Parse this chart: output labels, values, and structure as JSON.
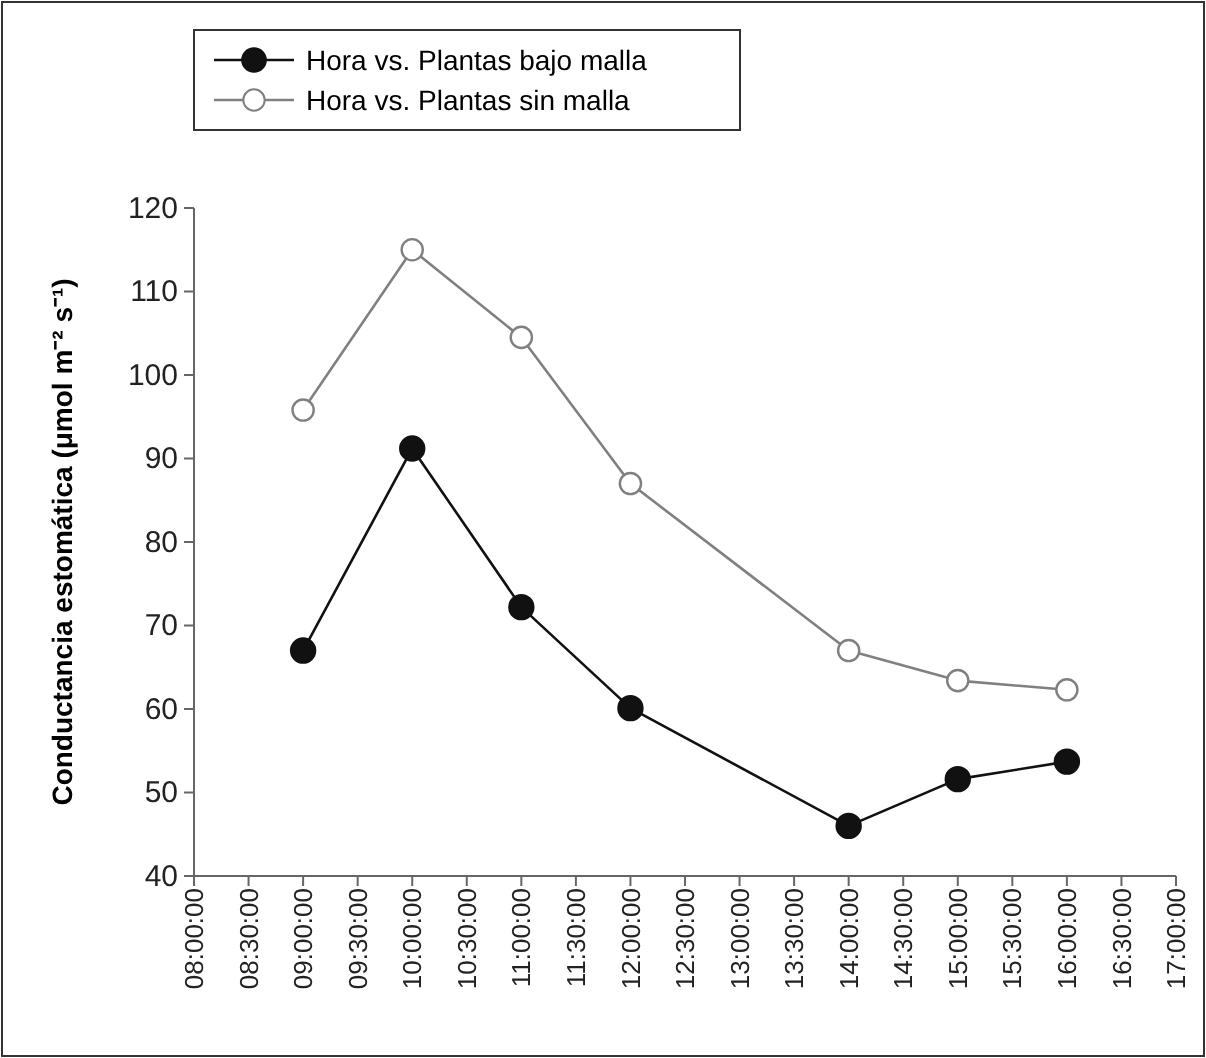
{
  "chart_data": {
    "type": "line",
    "ylabel": "Conductancia estomática (μmol m⁻² s⁻¹)",
    "xlim": [
      8,
      17
    ],
    "xticks": [
      {
        "value": 8,
        "label": "08:00:00"
      },
      {
        "value": 8.5,
        "label": "08:30:00"
      },
      {
        "value": 9,
        "label": "09:00:00"
      },
      {
        "value": 9.5,
        "label": "09:30:00"
      },
      {
        "value": 10,
        "label": "10:00:00"
      },
      {
        "value": 10.5,
        "label": "10:30:00"
      },
      {
        "value": 11,
        "label": "11:00:00"
      },
      {
        "value": 11.5,
        "label": "11:30:00"
      },
      {
        "value": 12,
        "label": "12:00:00"
      },
      {
        "value": 12.5,
        "label": "12:30:00"
      },
      {
        "value": 13,
        "label": "13:00:00"
      },
      {
        "value": 13.5,
        "label": "13:30:00"
      },
      {
        "value": 14,
        "label": "14:00:00"
      },
      {
        "value": 14.5,
        "label": "14:30:00"
      },
      {
        "value": 15,
        "label": "15:00:00"
      },
      {
        "value": 15.5,
        "label": "15:30:00"
      },
      {
        "value": 16,
        "label": "16:00:00"
      },
      {
        "value": 16.5,
        "label": "16:30:00"
      },
      {
        "value": 17,
        "label": "17:00:00"
      }
    ],
    "ylim": [
      40,
      120
    ],
    "yticks": [
      40,
      50,
      60,
      70,
      80,
      90,
      100,
      110,
      120
    ],
    "x": [
      9,
      10,
      11,
      12,
      14,
      15,
      16
    ],
    "series": [
      {
        "name": "Hora vs. Plantas bajo malla",
        "color": "#111111",
        "values": [
          67,
          91.2,
          72.2,
          60.1,
          46,
          51.6,
          53.7
        ]
      },
      {
        "name": "Hora vs. Plantas sin malla",
        "color": "#808080",
        "values": [
          95.8,
          115,
          104.5,
          87,
          67,
          63.4,
          62.3
        ]
      }
    ],
    "marker": "circle",
    "line_style": "solid",
    "grid": false,
    "legend": "top left"
  }
}
